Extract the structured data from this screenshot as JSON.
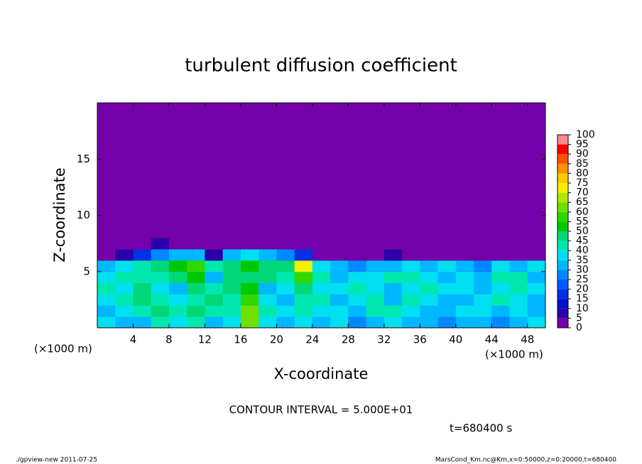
{
  "chart_data": {
    "type": "heatmap",
    "title": "turbulent diffusion coefficient",
    "x_label": "X-coordinate",
    "y_label": "Z-coordinate",
    "x_unit": "(×1000 m)",
    "x_unit_right": "(×1000 m)",
    "annotation": "CONTOUR INTERVAL = 5.000E+01",
    "time_label": "t=680400 s",
    "footer_left": "./gpview-new  2011-07-25",
    "footer_right": "MarsCond_Km.nc@Km,x=0:50000,z=0:20000,t=680400",
    "xlim": [
      0,
      50
    ],
    "ylim": [
      0,
      20
    ],
    "xticks": [
      4,
      8,
      12,
      16,
      20,
      24,
      28,
      32,
      36,
      40,
      44,
      48
    ],
    "yticks": [
      5,
      10,
      15
    ],
    "x": [
      1,
      3,
      5,
      7,
      9,
      11,
      13,
      15,
      17,
      19,
      21,
      23,
      25,
      27,
      29,
      31,
      33,
      35,
      37,
      39,
      41,
      43,
      45,
      47,
      49
    ],
    "y": [
      0.5,
      1.5,
      2.5,
      3.5,
      4.5,
      5.5,
      6.5,
      7.5,
      8.5,
      9.5,
      10.5,
      11.5,
      12.5,
      13.5,
      14.5,
      15.5,
      16.5,
      17.5,
      18.5,
      19.5
    ],
    "values": [
      [
        35,
        30,
        30,
        40,
        35,
        40,
        30,
        35,
        60,
        35,
        30,
        35,
        30,
        35,
        25,
        30,
        35,
        30,
        30,
        25,
        30,
        30,
        25,
        30,
        35
      ],
      [
        30,
        35,
        40,
        45,
        40,
        45,
        40,
        40,
        60,
        40,
        35,
        40,
        35,
        35,
        30,
        40,
        40,
        35,
        30,
        30,
        35,
        35,
        30,
        35,
        30
      ],
      [
        35,
        40,
        45,
        40,
        35,
        40,
        45,
        40,
        55,
        35,
        30,
        40,
        40,
        30,
        35,
        40,
        30,
        40,
        35,
        30,
        30,
        35,
        40,
        35,
        30
      ],
      [
        40,
        35,
        45,
        35,
        30,
        45,
        40,
        45,
        50,
        30,
        35,
        45,
        35,
        35,
        40,
        35,
        30,
        35,
        40,
        35,
        35,
        30,
        35,
        40,
        35
      ],
      [
        35,
        40,
        40,
        40,
        45,
        50,
        30,
        45,
        45,
        45,
        40,
        55,
        40,
        30,
        35,
        35,
        40,
        40,
        35,
        30,
        35,
        30,
        40,
        40,
        30
      ],
      [
        30,
        35,
        40,
        45,
        50,
        55,
        40,
        45,
        50,
        45,
        45,
        70,
        35,
        30,
        25,
        30,
        30,
        35,
        30,
        35,
        30,
        25,
        35,
        30,
        35
      ],
      [
        0,
        5,
        15,
        25,
        30,
        30,
        5,
        30,
        35,
        30,
        25,
        15,
        0,
        0,
        0,
        0,
        5,
        0,
        0,
        0,
        0,
        0,
        0,
        0,
        0
      ],
      [
        0,
        0,
        0,
        5,
        0,
        0,
        0,
        0,
        0,
        0,
        0,
        0,
        0,
        0,
        0,
        0,
        0,
        0,
        0,
        0,
        0,
        0,
        0,
        0,
        0
      ],
      [
        0,
        0,
        0,
        0,
        0,
        0,
        0,
        0,
        0,
        0,
        0,
        0,
        0,
        0,
        0,
        0,
        0,
        0,
        0,
        0,
        0,
        0,
        0,
        0,
        0
      ],
      [
        0,
        0,
        0,
        0,
        0,
        0,
        0,
        0,
        0,
        0,
        0,
        0,
        0,
        0,
        0,
        0,
        0,
        0,
        0,
        0,
        0,
        0,
        0,
        0,
        0
      ],
      [
        0,
        0,
        0,
        0,
        0,
        0,
        0,
        0,
        0,
        0,
        0,
        0,
        0,
        0,
        0,
        0,
        0,
        0,
        0,
        0,
        0,
        0,
        0,
        0,
        0
      ],
      [
        0,
        0,
        0,
        0,
        0,
        0,
        0,
        0,
        0,
        0,
        0,
        0,
        0,
        0,
        0,
        0,
        0,
        0,
        0,
        0,
        0,
        0,
        0,
        0,
        0
      ],
      [
        0,
        0,
        0,
        0,
        0,
        0,
        0,
        0,
        0,
        0,
        0,
        0,
        0,
        0,
        0,
        0,
        0,
        0,
        0,
        0,
        0,
        0,
        0,
        0,
        0
      ],
      [
        0,
        0,
        0,
        0,
        0,
        0,
        0,
        0,
        0,
        0,
        0,
        0,
        0,
        0,
        0,
        0,
        0,
        0,
        0,
        0,
        0,
        0,
        0,
        0,
        0
      ],
      [
        0,
        0,
        0,
        0,
        0,
        0,
        0,
        0,
        0,
        0,
        0,
        0,
        0,
        0,
        0,
        0,
        0,
        0,
        0,
        0,
        0,
        0,
        0,
        0,
        0
      ],
      [
        0,
        0,
        0,
        0,
        0,
        0,
        0,
        0,
        0,
        0,
        0,
        0,
        0,
        0,
        0,
        0,
        0,
        0,
        0,
        0,
        0,
        0,
        0,
        0,
        0
      ],
      [
        0,
        0,
        0,
        0,
        0,
        0,
        0,
        0,
        0,
        0,
        0,
        0,
        0,
        0,
        0,
        0,
        0,
        0,
        0,
        0,
        0,
        0,
        0,
        0,
        0
      ],
      [
        0,
        0,
        0,
        0,
        0,
        0,
        0,
        0,
        0,
        0,
        0,
        0,
        0,
        0,
        0,
        0,
        0,
        0,
        0,
        0,
        0,
        0,
        0,
        0,
        0
      ],
      [
        0,
        0,
        0,
        0,
        0,
        0,
        0,
        0,
        0,
        0,
        0,
        0,
        0,
        0,
        0,
        0,
        0,
        0,
        0,
        0,
        0,
        0,
        0,
        0,
        0
      ],
      [
        0,
        0,
        0,
        0,
        0,
        0,
        0,
        0,
        0,
        0,
        0,
        0,
        0,
        0,
        0,
        0,
        0,
        0,
        0,
        0,
        0,
        0,
        0,
        0,
        0
      ]
    ],
    "levels": [
      0,
      5,
      10,
      15,
      20,
      25,
      30,
      35,
      40,
      45,
      50,
      55,
      60,
      65,
      70,
      75,
      80,
      85,
      90,
      95,
      100
    ],
    "colors": [
      "#7300a8",
      "#2c00a8",
      "#0010c8",
      "#0030e8",
      "#0058ff",
      "#0088ff",
      "#00b8ff",
      "#00e0f0",
      "#00e8b0",
      "#00d878",
      "#00c800",
      "#30d800",
      "#70e000",
      "#b0e800",
      "#f0f000",
      "#ffc800",
      "#ff9000",
      "#ff5000",
      "#ff0000",
      "#ff8888"
    ]
  }
}
